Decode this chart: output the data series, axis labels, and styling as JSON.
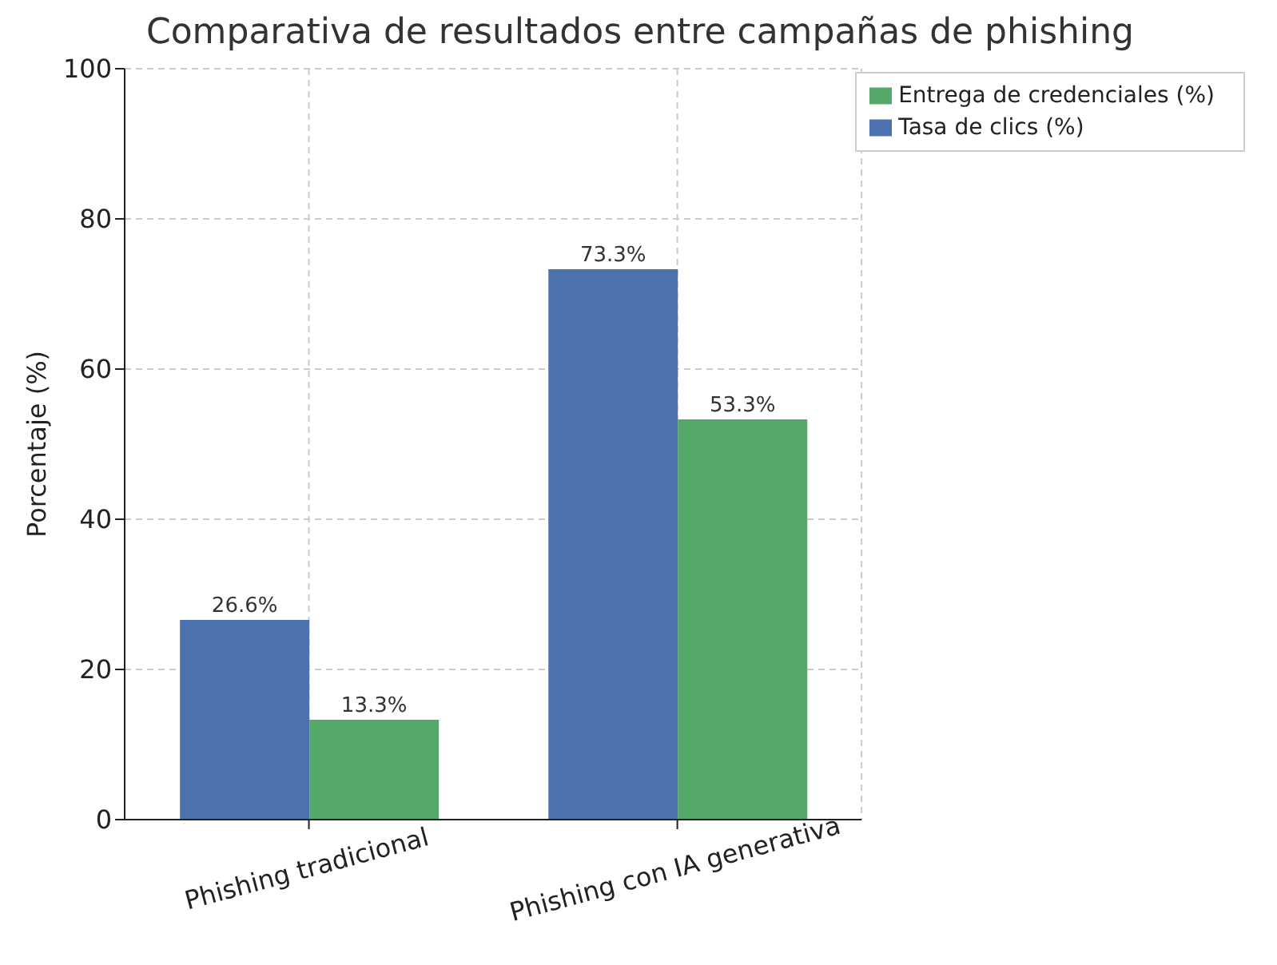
{
  "chart_data": {
    "type": "bar",
    "title": "Comparativa de resultados entre campañas de phishing",
    "ylabel": "Porcentaje (%)",
    "categories": [
      "Phishing tradicional",
      "Phishing con IA generativa"
    ],
    "series": [
      {
        "name": "Tasa de clics (%)",
        "color": "#4c72b0",
        "values": [
          26.6,
          73.3
        ],
        "value_labels": [
          "26.6%",
          "73.3%"
        ]
      },
      {
        "name": "Entrega de credenciales (%)",
        "color": "#55a868",
        "values": [
          13.3,
          53.3
        ],
        "value_labels": [
          "13.3%",
          "53.3%"
        ]
      }
    ],
    "ylim": [
      0,
      100
    ],
    "yticks": [
      0,
      20,
      40,
      60,
      80,
      100
    ],
    "grid": true,
    "legend": "top right"
  }
}
